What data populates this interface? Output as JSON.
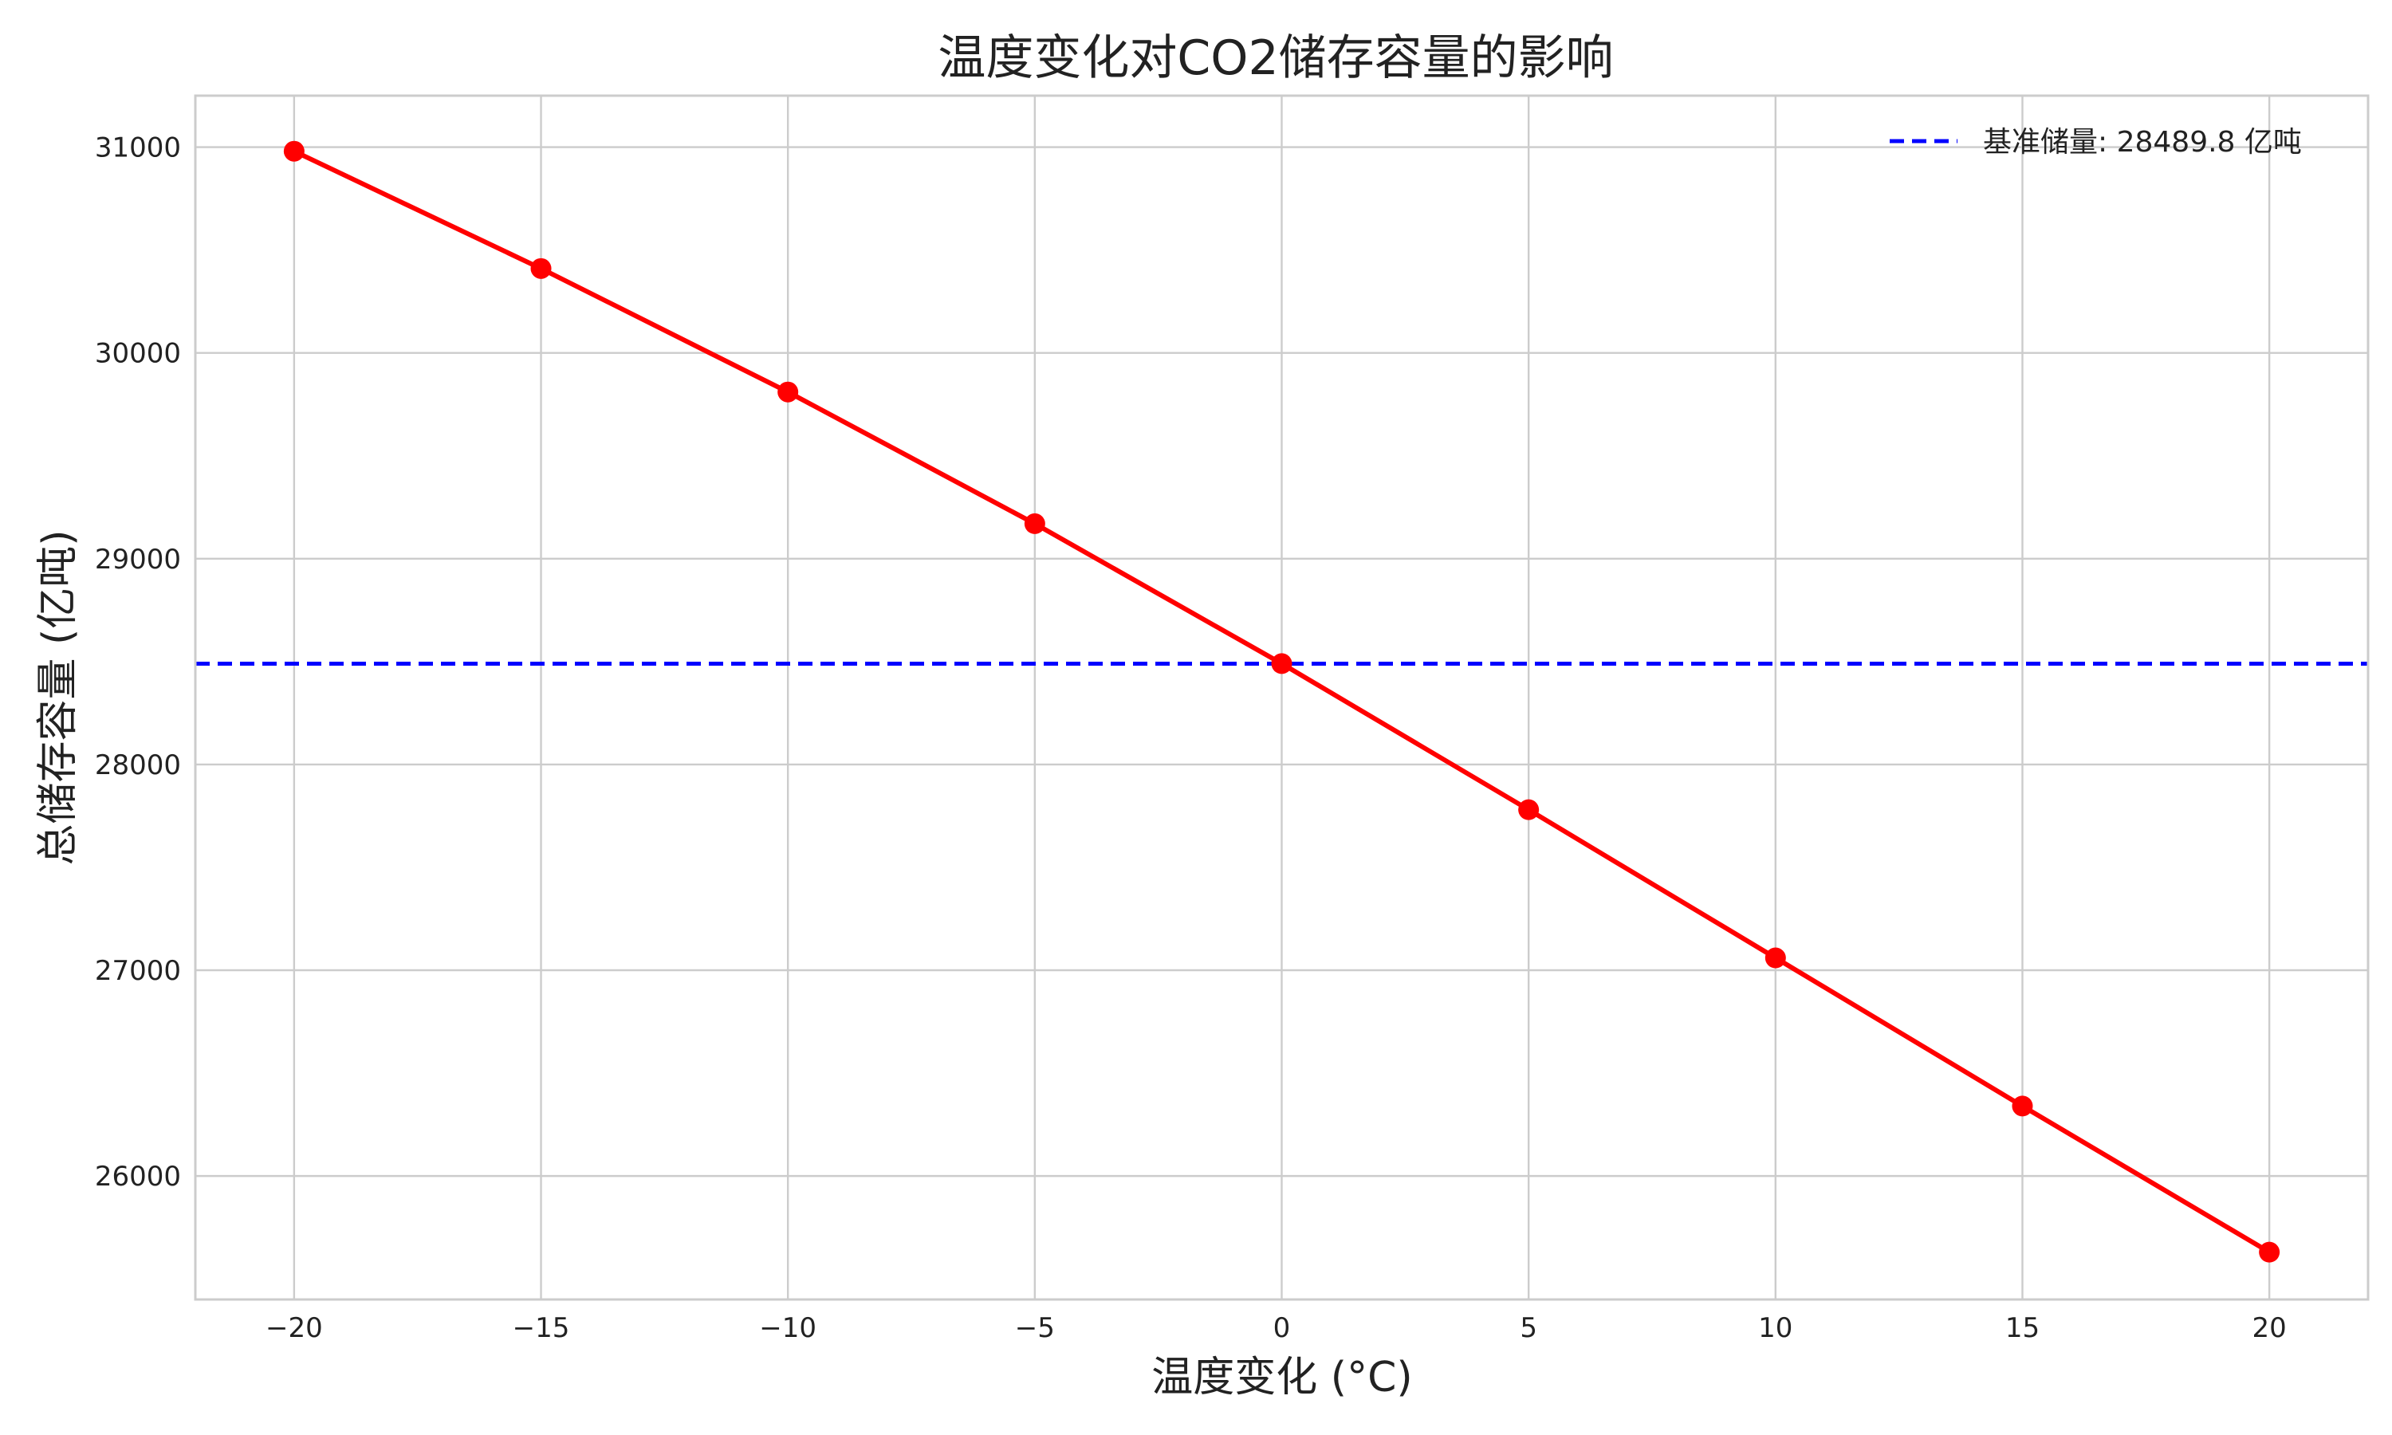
{
  "chart_data": {
    "type": "line",
    "title": "温度变化对CO2储存容量的影响",
    "xlabel": "温度变化 (°C)",
    "ylabel": "总储存容量 (亿吨)",
    "x": [
      -20,
      -15,
      -10,
      -5,
      0,
      5,
      10,
      15,
      20
    ],
    "series": [
      {
        "values": [
          30980,
          30410,
          29810,
          29170,
          28490,
          27780,
          27060,
          26340,
          25630
        ],
        "color": "#ff0000",
        "marker": "circle"
      }
    ],
    "reference_line": {
      "label": "基准储量: 28489.8 亿吨",
      "value": 28489.8,
      "color": "#0000ff",
      "style": "dashed"
    },
    "xlim": [
      -22,
      22
    ],
    "ylim": [
      25400,
      31250
    ],
    "xticks": [
      -20,
      -15,
      -10,
      -5,
      0,
      5,
      10,
      15,
      20
    ],
    "xtick_labels": [
      "−20",
      "−15",
      "−10",
      "−5",
      "0",
      "5",
      "10",
      "15",
      "20"
    ],
    "yticks": [
      26000,
      27000,
      28000,
      29000,
      30000,
      31000
    ],
    "ytick_labels": [
      "26000",
      "27000",
      "28000",
      "29000",
      "30000",
      "31000"
    ],
    "grid": true,
    "legend_position": "top-right"
  }
}
